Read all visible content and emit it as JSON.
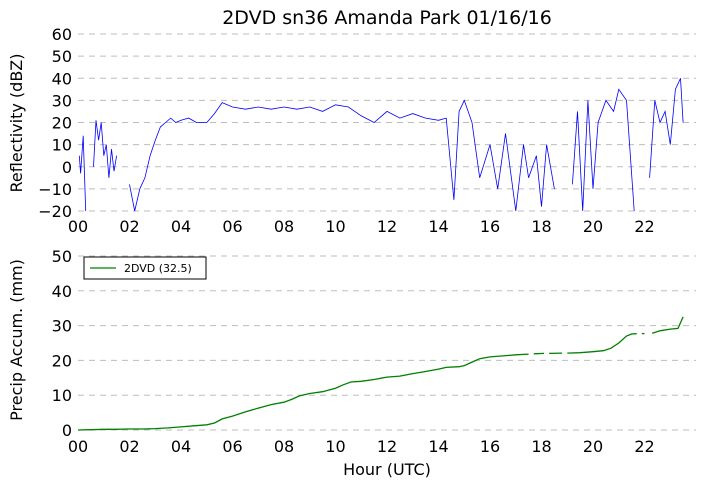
{
  "chart_data": [
    {
      "type": "line",
      "title": "2DVD sn36 Amanda Park 01/16/16",
      "ylabel": "Reflectivity (dBZ)",
      "xlabel": "",
      "xlim": [
        0,
        24
      ],
      "ylim": [
        -20,
        60
      ],
      "x_tick_labels": [
        "00",
        "02",
        "04",
        "06",
        "08",
        "10",
        "12",
        "14",
        "16",
        "18",
        "20",
        "22"
      ],
      "y_tick_labels": [
        "−20",
        "−10",
        "0",
        "10",
        "20",
        "30",
        "40",
        "50",
        "60"
      ],
      "grid": "horizontal dashed",
      "series": [
        {
          "color": "#0000ff",
          "segments": [
            [
              [
                0.05,
                5
              ],
              [
                0.1,
                -3
              ],
              [
                0.2,
                14
              ],
              [
                0.3,
                -20
              ]
            ],
            [
              [
                0.6,
                0
              ],
              [
                0.7,
                21
              ],
              [
                0.8,
                12
              ],
              [
                0.9,
                20
              ],
              [
                1.0,
                5
              ],
              [
                1.1,
                10
              ],
              [
                1.2,
                -5
              ],
              [
                1.3,
                8
              ],
              [
                1.4,
                -2
              ],
              [
                1.5,
                5
              ]
            ],
            [
              [
                2.0,
                -8
              ],
              [
                2.2,
                -20
              ],
              [
                2.4,
                -10
              ],
              [
                2.6,
                -5
              ],
              [
                2.8,
                5
              ],
              [
                3.0,
                12
              ],
              [
                3.2,
                18
              ],
              [
                3.4,
                20
              ],
              [
                3.6,
                22
              ],
              [
                3.8,
                20
              ],
              [
                4.0,
                21
              ],
              [
                4.3,
                22
              ],
              [
                4.6,
                20
              ],
              [
                5.0,
                20
              ],
              [
                5.3,
                24
              ],
              [
                5.6,
                29
              ],
              [
                6.0,
                27
              ],
              [
                6.5,
                26
              ],
              [
                7.0,
                27
              ],
              [
                7.5,
                26
              ],
              [
                8.0,
                27
              ],
              [
                8.5,
                26
              ],
              [
                9.0,
                27
              ],
              [
                9.5,
                25
              ],
              [
                10.0,
                28
              ],
              [
                10.5,
                27
              ],
              [
                11.0,
                23
              ],
              [
                11.5,
                20
              ],
              [
                12.0,
                25
              ],
              [
                12.5,
                22
              ],
              [
                13.0,
                24
              ],
              [
                13.5,
                22
              ],
              [
                14.0,
                21
              ],
              [
                14.3,
                22
              ],
              [
                14.6,
                -15
              ],
              [
                14.8,
                25
              ],
              [
                15.0,
                30
              ],
              [
                15.3,
                20
              ],
              [
                15.6,
                -5
              ],
              [
                16.0,
                10
              ],
              [
                16.3,
                -10
              ],
              [
                16.6,
                15
              ],
              [
                17.0,
                -20
              ],
              [
                17.3,
                10
              ],
              [
                17.5,
                -5
              ],
              [
                17.8,
                5
              ],
              [
                18.0,
                -18
              ],
              [
                18.2,
                10
              ],
              [
                18.5,
                -10
              ]
            ],
            [
              [
                19.2,
                -8
              ],
              [
                19.4,
                25
              ],
              [
                19.6,
                -20
              ],
              [
                19.8,
                30
              ],
              [
                20.0,
                -10
              ],
              [
                20.2,
                20
              ],
              [
                20.5,
                30
              ],
              [
                20.8,
                25
              ],
              [
                21.0,
                35
              ],
              [
                21.3,
                30
              ],
              [
                21.6,
                -20
              ]
            ],
            [
              [
                22.2,
                -5
              ],
              [
                22.4,
                30
              ],
              [
                22.6,
                20
              ],
              [
                22.8,
                25
              ],
              [
                23.0,
                10
              ],
              [
                23.2,
                35
              ],
              [
                23.4,
                40
              ],
              [
                23.5,
                20
              ]
            ]
          ]
        }
      ]
    },
    {
      "type": "line",
      "title": "",
      "ylabel": "Precip Accum. (mm)",
      "xlabel": "Hour (UTC)",
      "xlim": [
        0,
        24
      ],
      "ylim": [
        0,
        50
      ],
      "x_tick_labels": [
        "00",
        "02",
        "04",
        "06",
        "08",
        "10",
        "12",
        "14",
        "16",
        "18",
        "20",
        "22"
      ],
      "y_tick_labels": [
        "0",
        "10",
        "20",
        "30",
        "40",
        "50"
      ],
      "grid": "horizontal dashed",
      "legend": "top-left",
      "series": [
        {
          "name": "2DVD (32.5)",
          "color": "#008000",
          "segments": [
            [
              [
                0,
                0
              ],
              [
                0.5,
                0.1
              ],
              [
                1.0,
                0.2
              ],
              [
                1.5,
                0.2
              ],
              [
                2.0,
                0.3
              ],
              [
                2.5,
                0.3
              ],
              [
                3.0,
                0.4
              ],
              [
                3.5,
                0.6
              ],
              [
                4.0,
                0.9
              ],
              [
                4.5,
                1.2
              ],
              [
                5.0,
                1.5
              ],
              [
                5.3,
                2.0
              ],
              [
                5.6,
                3.2
              ],
              [
                6.0,
                4.0
              ],
              [
                6.5,
                5.2
              ],
              [
                7.0,
                6.3
              ],
              [
                7.5,
                7.3
              ],
              [
                8.0,
                8.0
              ],
              [
                8.3,
                8.8
              ],
              [
                8.6,
                9.8
              ],
              [
                9.0,
                10.5
              ],
              [
                9.5,
                11.0
              ],
              [
                10.0,
                12.0
              ],
              [
                10.3,
                13.0
              ],
              [
                10.6,
                13.8
              ],
              [
                11.0,
                14.0
              ],
              [
                11.5,
                14.5
              ],
              [
                12.0,
                15.2
              ],
              [
                12.5,
                15.5
              ],
              [
                13.0,
                16.2
              ],
              [
                13.5,
                16.8
              ],
              [
                14.0,
                17.5
              ],
              [
                14.3,
                18.0
              ],
              [
                14.8,
                18.2
              ],
              [
                15.0,
                18.5
              ],
              [
                15.3,
                19.5
              ],
              [
                15.6,
                20.5
              ],
              [
                16.0,
                21.0
              ],
              [
                16.5,
                21.3
              ],
              [
                17.0,
                21.6
              ],
              [
                17.5,
                21.8
              ]
            ],
            [
              [
                17.7,
                21.9
              ],
              [
                18.1,
                22.0
              ]
            ],
            [
              [
                18.3,
                22.0
              ],
              [
                18.8,
                22.1
              ]
            ],
            [
              [
                19.0,
                22.1
              ],
              [
                19.5,
                22.2
              ],
              [
                20.0,
                22.5
              ],
              [
                20.4,
                22.8
              ],
              [
                20.7,
                23.5
              ],
              [
                21.0,
                25.0
              ],
              [
                21.3,
                27.0
              ],
              [
                21.5,
                27.6
              ],
              [
                21.7,
                27.7
              ]
            ],
            [
              [
                21.9,
                27.7
              ],
              [
                22.0,
                27.7
              ]
            ],
            [
              [
                22.3,
                27.8
              ],
              [
                22.6,
                28.5
              ],
              [
                23.0,
                29.0
              ],
              [
                23.3,
                29.2
              ],
              [
                23.5,
                32.5
              ]
            ]
          ]
        }
      ]
    }
  ]
}
